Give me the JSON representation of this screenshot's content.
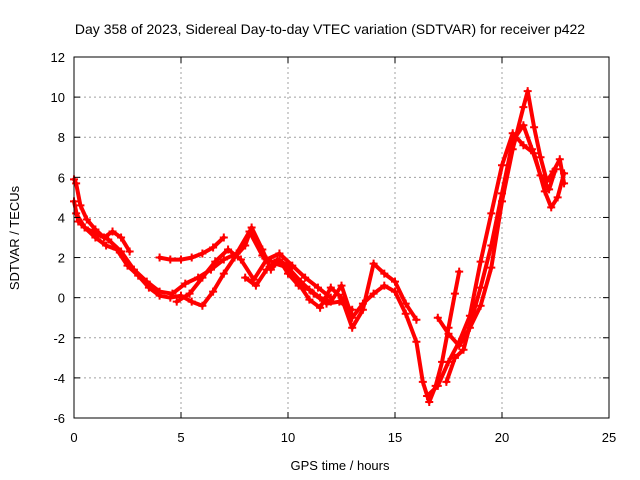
{
  "chart_data": {
    "type": "scatter",
    "title": "Day 358 of 2023, Sidereal Day-to-day VTEC variation (SDTVAR) for receiver p422",
    "xlabel": "GPS time / hours",
    "ylabel": "SDTVAR / TECUs",
    "xlim": [
      0,
      25
    ],
    "ylim": [
      -6,
      12
    ],
    "xticks": [
      "0",
      "5",
      "10",
      "15",
      "20",
      "25"
    ],
    "yticks": [
      "-6",
      "-4",
      "-2",
      "0",
      "2",
      "4",
      "6",
      "8",
      "10",
      "12"
    ],
    "grid": true,
    "marker": "+",
    "color": "#ff0000",
    "series": [
      {
        "name": "trace-1",
        "x": [
          0.0,
          0.1,
          0.3,
          0.6,
          1.0,
          1.4,
          1.8,
          2.2,
          2.6
        ],
        "y": [
          5.9,
          5.7,
          4.6,
          3.9,
          3.4,
          3.0,
          3.3,
          3.0,
          2.3
        ]
      },
      {
        "name": "trace-2",
        "x": [
          0.0,
          0.2,
          0.5,
          1.0,
          1.5,
          2.0,
          2.5,
          3.0,
          3.5,
          4.0,
          4.5,
          5.0,
          5.5,
          6.0,
          6.5,
          7.0,
          7.5,
          8.0,
          8.3,
          8.8,
          9.2,
          9.6,
          10.0,
          10.5,
          11.0,
          11.5,
          12.0,
          12.5,
          13.0,
          13.5,
          14.0,
          14.5,
          15.0,
          15.5,
          16.0,
          16.3,
          16.6,
          16.9,
          17.2,
          17.5,
          17.8,
          18.0
        ],
        "y": [
          4.8,
          3.8,
          3.5,
          3.0,
          2.6,
          2.4,
          1.6,
          1.1,
          0.5,
          0.1,
          0.0,
          0.1,
          -0.2,
          -0.4,
          0.3,
          1.2,
          2.0,
          2.6,
          3.5,
          2.4,
          1.4,
          1.9,
          1.2,
          0.6,
          0.4,
          0.0,
          -0.2,
          0.6,
          -1.0,
          -0.3,
          0.2,
          0.6,
          0.3,
          -0.8,
          -2.2,
          -4.2,
          -5.2,
          -4.4,
          -3.2,
          -1.5,
          0.2,
          1.3
        ]
      },
      {
        "name": "trace-3",
        "x": [
          0.1,
          0.5,
          1.0,
          1.6,
          2.2,
          2.8,
          3.4,
          4.0,
          4.6,
          5.2,
          5.8,
          6.4,
          7.0,
          7.6,
          8.2,
          8.8,
          9.4,
          10.0,
          10.6,
          11.2,
          11.8,
          12.4,
          13.0
        ],
        "y": [
          4.2,
          3.5,
          3.2,
          2.9,
          2.3,
          1.4,
          0.8,
          0.3,
          0.2,
          0.7,
          1.0,
          1.4,
          1.9,
          2.2,
          3.3,
          2.1,
          1.7,
          1.5,
          0.8,
          0.2,
          -0.3,
          -0.2,
          -0.6
        ]
      },
      {
        "name": "trace-4",
        "x": [
          4.0,
          4.5,
          5.0,
          5.5,
          6.0,
          6.5,
          7.0
        ],
        "y": [
          2.0,
          1.9,
          1.9,
          2.0,
          2.2,
          2.5,
          3.0
        ]
      },
      {
        "name": "trace-5",
        "x": [
          4.8,
          5.4,
          6.0,
          6.6,
          7.2,
          7.8,
          8.4,
          9.0,
          9.6,
          10.2,
          10.8,
          11.4,
          12.0
        ],
        "y": [
          -0.2,
          0.2,
          1.0,
          1.8,
          2.4,
          1.9,
          0.9,
          1.9,
          2.2,
          1.6,
          1.0,
          0.5,
          0.0
        ]
      },
      {
        "name": "trace-6",
        "x": [
          8.0,
          8.5,
          9.0,
          9.5,
          10.0,
          10.5,
          11.0,
          11.5,
          12.0,
          12.5,
          13.0,
          13.5,
          14.0,
          14.5,
          15.0,
          15.5,
          16.0
        ],
        "y": [
          1.0,
          0.6,
          1.4,
          1.9,
          1.6,
          0.7,
          -0.1,
          -0.5,
          0.5,
          0.0,
          -1.5,
          -0.6,
          1.7,
          1.2,
          0.8,
          -0.3,
          -1.1
        ]
      },
      {
        "name": "trace-7",
        "x": [
          17.0,
          17.5,
          18.0,
          18.5,
          19.0,
          19.5,
          20.0,
          20.5,
          21.0,
          21.2,
          21.5,
          21.8,
          22.1,
          22.4,
          22.7,
          22.9
        ],
        "y": [
          -1.0,
          -1.8,
          -2.4,
          -1.5,
          -0.4,
          1.5,
          4.8,
          7.4,
          9.5,
          10.3,
          8.5,
          7.0,
          5.8,
          6.3,
          6.9,
          5.7
        ]
      },
      {
        "name": "trace-8",
        "x": [
          16.5,
          17.0,
          17.5,
          18.0,
          18.5,
          19.0,
          19.5,
          20.0,
          20.5,
          21.0,
          21.5,
          22.0,
          22.3,
          22.6,
          22.9
        ],
        "y": [
          -4.9,
          -4.4,
          -3.2,
          -2.2,
          -0.9,
          1.8,
          4.2,
          6.6,
          8.2,
          7.6,
          7.2,
          5.3,
          4.5,
          5.0,
          6.2
        ]
      },
      {
        "name": "trace-9",
        "x": [
          17.4,
          17.8,
          18.2,
          18.6,
          19.0,
          19.5,
          20.0,
          20.5,
          21.0,
          21.4,
          21.8,
          22.2,
          22.5
        ],
        "y": [
          -4.2,
          -3.0,
          -2.6,
          -1.0,
          0.5,
          2.6,
          5.2,
          7.8,
          8.6,
          7.4,
          6.1,
          5.4,
          6.4
        ]
      }
    ]
  }
}
